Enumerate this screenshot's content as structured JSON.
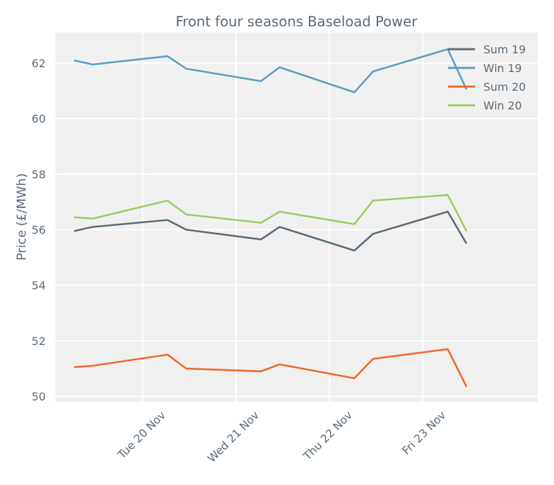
{
  "chart_data": {
    "type": "line",
    "title": "Front four seasons Baseload Power",
    "xlabel": "",
    "ylabel": "Price (£/MWh)",
    "ylim": [
      49.8,
      63.1
    ],
    "yticks": [
      50,
      52,
      54,
      56,
      58,
      60,
      62
    ],
    "xlim": [
      0,
      15.5
    ],
    "xticks": [
      {
        "x": 2.8,
        "label": "Tue 20 Nov"
      },
      {
        "x": 5.8,
        "label": "Wed 21 Nov"
      },
      {
        "x": 8.8,
        "label": "Thu 22 Nov"
      },
      {
        "x": 11.8,
        "label": "Fri 23 Nov"
      }
    ],
    "x": [
      0.6,
      1.2,
      3.6,
      4.2,
      6.6,
      7.2,
      9.6,
      10.2,
      12.6,
      13.2
    ],
    "series": [
      {
        "name": "Sum 19",
        "color": "#5b6b78",
        "values": [
          55.95,
          56.1,
          56.35,
          56.0,
          55.65,
          56.1,
          55.25,
          55.85,
          56.65,
          55.5
        ]
      },
      {
        "name": "Win 19",
        "color": "#5b9ec0",
        "values": [
          62.1,
          61.95,
          62.25,
          61.8,
          61.35,
          61.85,
          60.95,
          61.7,
          62.5,
          61.05
        ]
      },
      {
        "name": "Sum 20",
        "color": "#f0682a",
        "values": [
          51.05,
          51.1,
          51.5,
          51.0,
          50.9,
          51.15,
          50.65,
          51.35,
          51.7,
          50.35
        ]
      },
      {
        "name": "Win 20",
        "color": "#9ccb60",
        "values": [
          56.45,
          56.4,
          57.05,
          56.55,
          56.25,
          56.65,
          56.2,
          57.05,
          57.25,
          55.95
        ]
      }
    ],
    "grid": true,
    "legend": "top-right"
  }
}
